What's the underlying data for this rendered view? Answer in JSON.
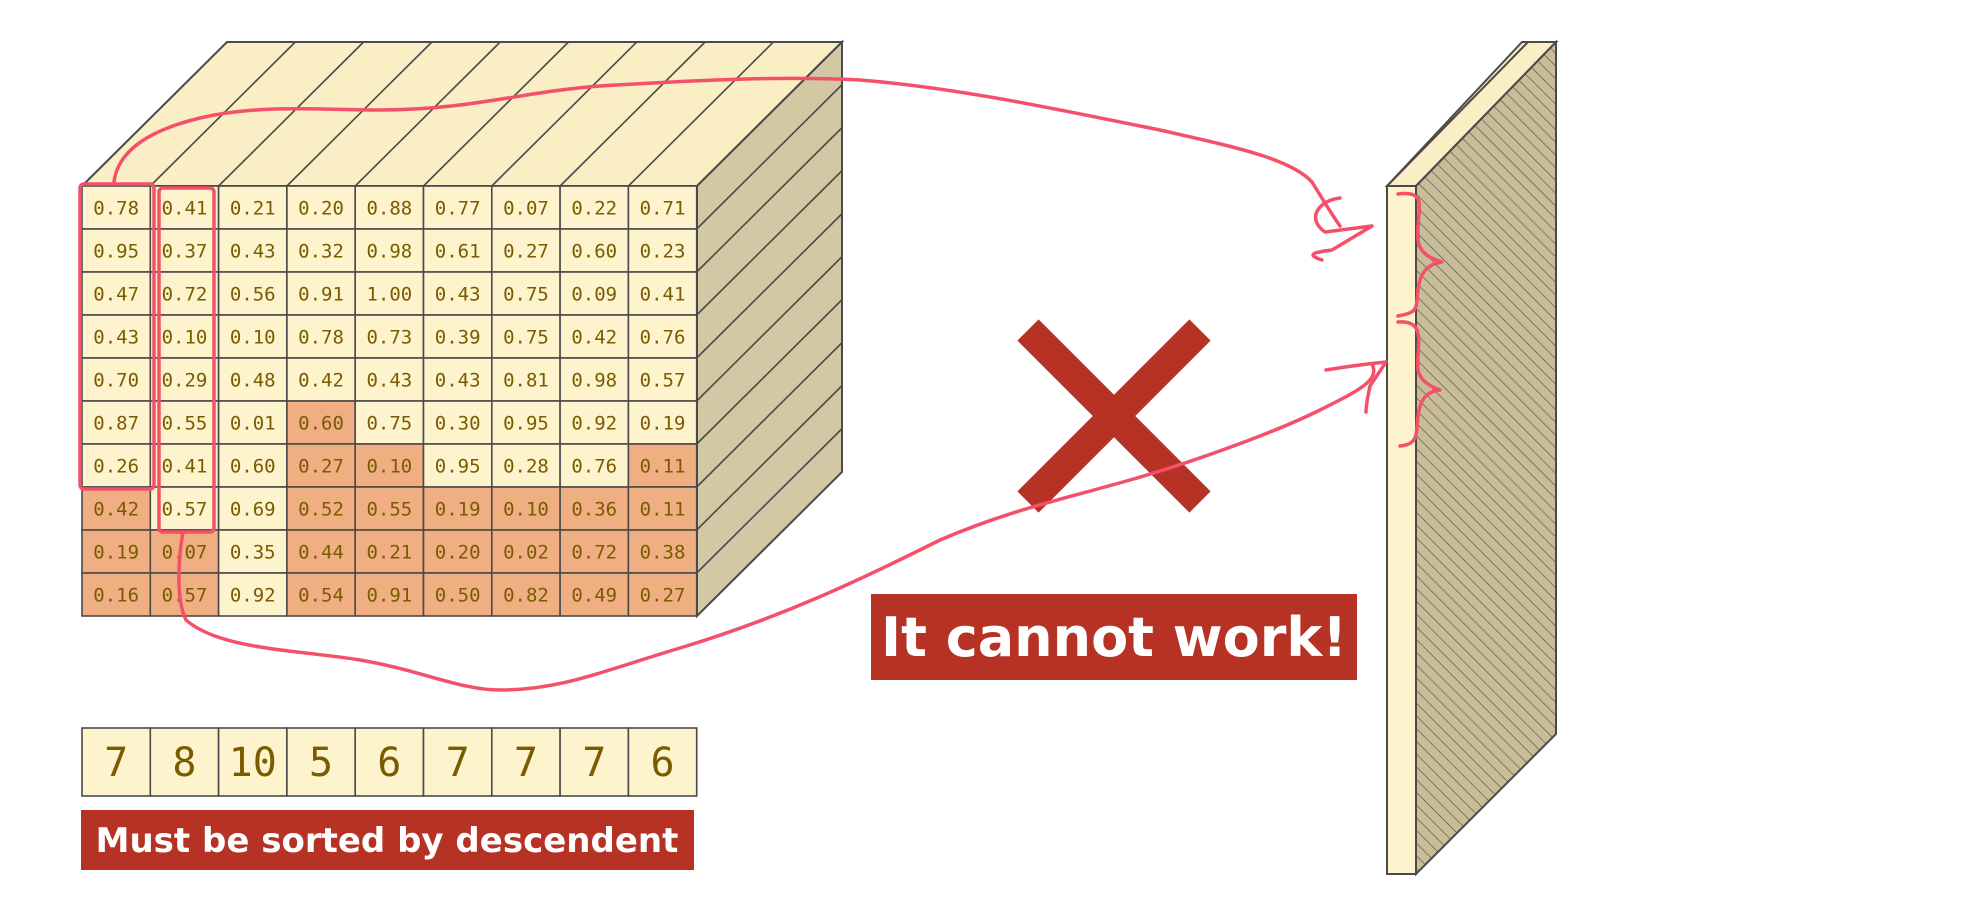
{
  "tensor": {
    "rows": [
      [
        "0.78",
        "0.41",
        "0.21",
        "0.20",
        "0.88",
        "0.77",
        "0.07",
        "0.22",
        "0.71"
      ],
      [
        "0.95",
        "0.37",
        "0.43",
        "0.32",
        "0.98",
        "0.61",
        "0.27",
        "0.60",
        "0.23"
      ],
      [
        "0.47",
        "0.72",
        "0.56",
        "0.91",
        "1.00",
        "0.43",
        "0.75",
        "0.09",
        "0.41"
      ],
      [
        "0.43",
        "0.10",
        "0.10",
        "0.78",
        "0.73",
        "0.39",
        "0.75",
        "0.42",
        "0.76"
      ],
      [
        "0.70",
        "0.29",
        "0.48",
        "0.42",
        "0.43",
        "0.43",
        "0.81",
        "0.98",
        "0.57"
      ],
      [
        "0.87",
        "0.55",
        "0.01",
        "0.60",
        "0.75",
        "0.30",
        "0.95",
        "0.92",
        "0.19"
      ],
      [
        "0.26",
        "0.41",
        "0.60",
        "0.27",
        "0.10",
        "0.95",
        "0.28",
        "0.76",
        "0.11"
      ],
      [
        "0.42",
        "0.57",
        "0.69",
        "0.52",
        "0.55",
        "0.19",
        "0.10",
        "0.36",
        "0.11"
      ],
      [
        "0.19",
        "0.07",
        "0.35",
        "0.44",
        "0.21",
        "0.20",
        "0.02",
        "0.72",
        "0.38"
      ],
      [
        "0.16",
        "0.57",
        "0.92",
        "0.54",
        "0.91",
        "0.50",
        "0.82",
        "0.49",
        "0.27"
      ]
    ],
    "lengths": [
      7,
      8,
      10,
      5,
      6,
      7,
      7,
      7,
      6
    ]
  },
  "labels": {
    "sorted_note": "Must be sorted by descendent",
    "warning": "It cannot work!"
  },
  "colors": {
    "cell_valid": "#fdf3cc",
    "cell_padding": "#f0ae83",
    "cube_top": "#f9eec4",
    "cube_side": "#d3c8a4",
    "grid_line": "#4a4a4a",
    "cell_text": "#7a5c00",
    "annotation": "#f4506a",
    "banner_bg": "#b53224",
    "cross": "#b53224"
  },
  "icons": {
    "cross": "cross-icon"
  }
}
